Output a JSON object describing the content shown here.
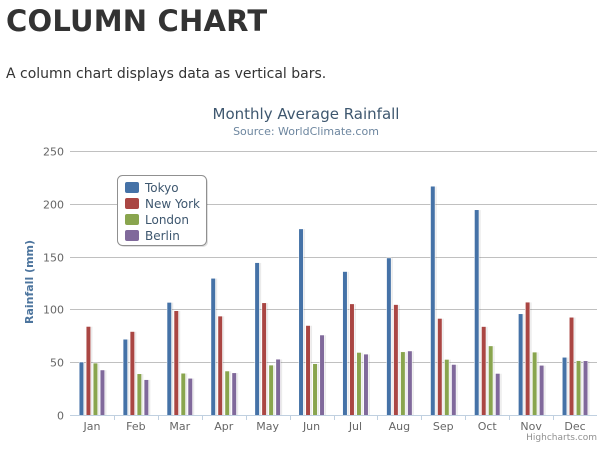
{
  "page": {
    "heading": "COLUMN CHART",
    "description": "A column chart displays data as vertical bars."
  },
  "chart_data": {
    "type": "bar",
    "title": "Monthly Average Rainfall",
    "subtitle": "Source: WorldClimate.com",
    "xlabel": "",
    "ylabel": "Rainfall (mm)",
    "ylim": [
      0,
      250
    ],
    "yticks": [
      0,
      50,
      100,
      150,
      200,
      250
    ],
    "grid": true,
    "legend_position": "top-left",
    "credits": "Highcharts.com",
    "categories": [
      "Jan",
      "Feb",
      "Mar",
      "Apr",
      "May",
      "Jun",
      "Jul",
      "Aug",
      "Sep",
      "Oct",
      "Nov",
      "Dec"
    ],
    "series": [
      {
        "name": "Tokyo",
        "color": "#4572A7",
        "values": [
          49.9,
          71.5,
          106.4,
          129.2,
          144.0,
          176.0,
          135.6,
          148.5,
          216.4,
          194.1,
          95.6,
          54.4
        ]
      },
      {
        "name": "New York",
        "color": "#AA4643",
        "values": [
          83.6,
          78.8,
          98.5,
          93.4,
          106.0,
          84.5,
          105.0,
          104.3,
          91.2,
          83.5,
          106.6,
          92.3
        ]
      },
      {
        "name": "London",
        "color": "#89A54E",
        "values": [
          48.9,
          38.8,
          39.3,
          41.4,
          47.0,
          48.3,
          59.0,
          59.6,
          52.4,
          65.2,
          59.3,
          51.2
        ]
      },
      {
        "name": "Berlin",
        "color": "#80699B",
        "values": [
          42.4,
          33.2,
          34.5,
          39.7,
          52.6,
          75.5,
          57.4,
          60.4,
          47.6,
          39.1,
          46.8,
          51.1
        ]
      }
    ]
  }
}
